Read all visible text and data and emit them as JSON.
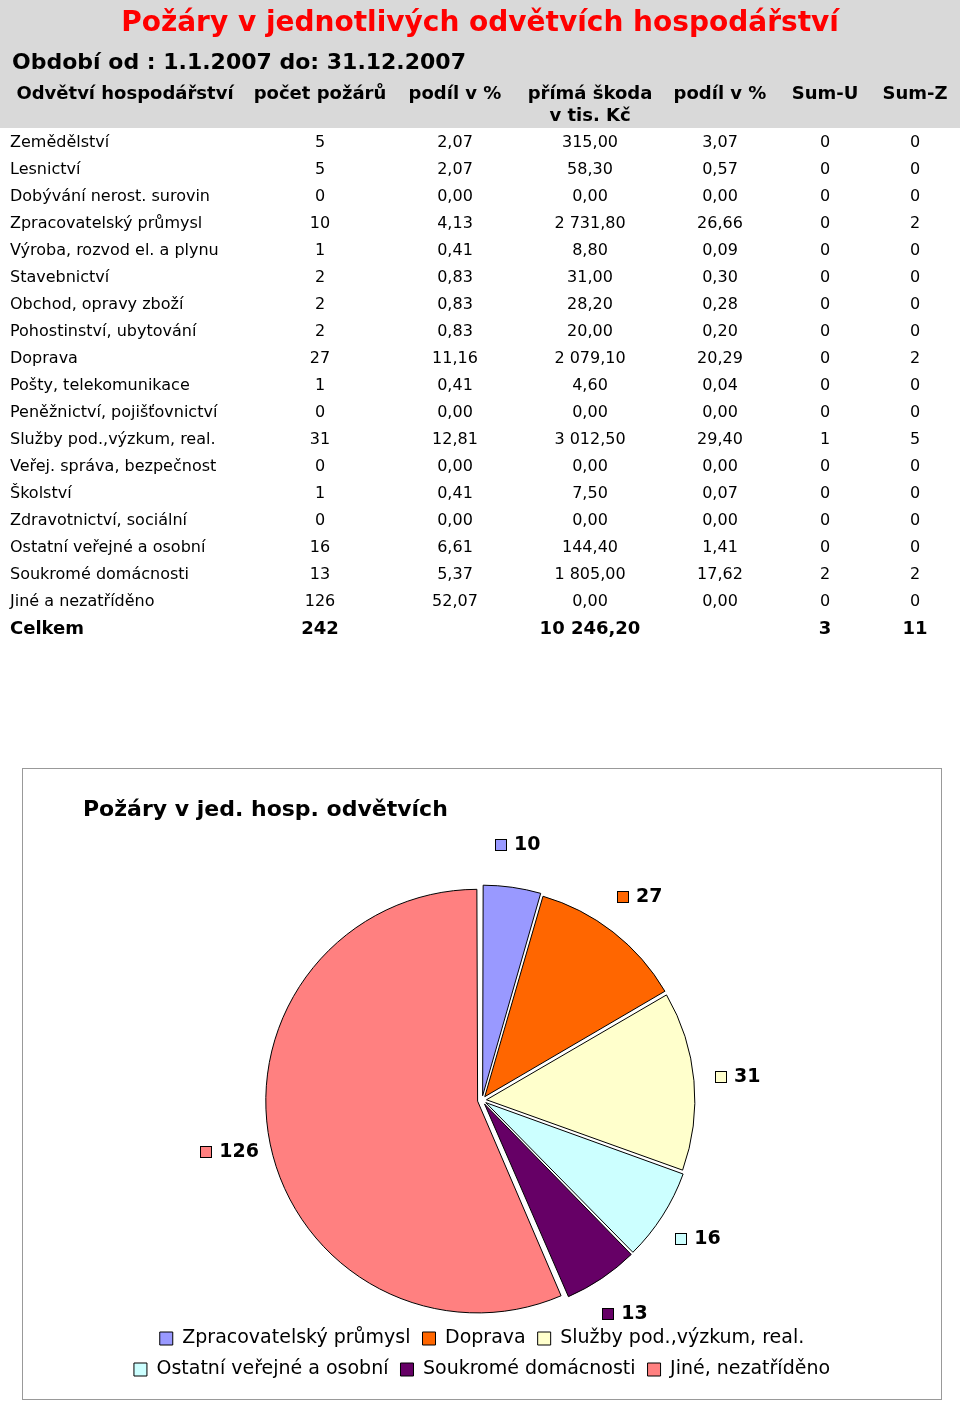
{
  "chart_data": [
    {
      "type": "other",
      "title": "Požáry v jednotlivých odvětvích hospodářství",
      "subtitle": "Období od : 1.1.2007 do: 31.12.2007",
      "categories": [
        "Odvětví  hospodářství",
        "počet požárů",
        "podíl v %",
        "přímá škoda v tis. Kč",
        "podíl v %",
        "Sum-U",
        "Sum-Z"
      ],
      "y_categories": [
        "Zemědělství",
        "Lesnictví",
        "Dobývání nerost. surovin",
        "Zpracovatelský průmysl",
        "Výroba, rozvod el. a plynu",
        "Stavebnictví",
        "Obchod, opravy zboží",
        "Pohostinství, ubytování",
        "Doprava",
        "Pošty, telekomunikace",
        "Peněžnictví, pojišťovnictví",
        "Služby pod.,výzkum, real.",
        "Veřej. správa, bezpečnost",
        "Školství",
        "Zdravotnictví, sociální",
        "Ostatní veřejné a osobní",
        "Soukromé domácnosti",
        "Jiné a nezatříděno",
        "Celkem"
      ],
      "cell_labels": [
        [
          "5",
          "2,07",
          "315,00",
          "3,07",
          "0",
          "0"
        ],
        [
          "5",
          "2,07",
          "58,30",
          "0,57",
          "0",
          "0"
        ],
        [
          "0",
          "0,00",
          "0,00",
          "0,00",
          "0",
          "0"
        ],
        [
          "10",
          "4,13",
          "2 731,80",
          "26,66",
          "0",
          "2"
        ],
        [
          "1",
          "0,41",
          "8,80",
          "0,09",
          "0",
          "0"
        ],
        [
          "2",
          "0,83",
          "31,00",
          "0,30",
          "0",
          "0"
        ],
        [
          "2",
          "0,83",
          "28,20",
          "0,28",
          "0",
          "0"
        ],
        [
          "2",
          "0,83",
          "20,00",
          "0,20",
          "0",
          "0"
        ],
        [
          "27",
          "11,16",
          "2 079,10",
          "20,29",
          "0",
          "2"
        ],
        [
          "1",
          "0,41",
          "4,60",
          "0,04",
          "0",
          "0"
        ],
        [
          "0",
          "0,00",
          "0,00",
          "0,00",
          "0",
          "0"
        ],
        [
          "31",
          "12,81",
          "3 012,50",
          "29,40",
          "1",
          "5"
        ],
        [
          "0",
          "0,00",
          "0,00",
          "0,00",
          "0",
          "0"
        ],
        [
          "1",
          "0,41",
          "7,50",
          "0,07",
          "0",
          "0"
        ],
        [
          "0",
          "0,00",
          "0,00",
          "0,00",
          "0",
          "0"
        ],
        [
          "16",
          "6,61",
          "144,40",
          "1,41",
          "0",
          "0"
        ],
        [
          "13",
          "5,37",
          "1 805,00",
          "17,62",
          "2",
          "2"
        ],
        [
          "126",
          "52,07",
          "0,00",
          "0,00",
          "0",
          "0"
        ],
        [
          "242",
          null,
          "10 246,20",
          null,
          "3",
          "11"
        ]
      ]
    },
    {
      "type": "pie",
      "title": "Požáry v jed. hosp. odvětvích",
      "categories": [
        "Zpracovatelský průmysl",
        "Doprava",
        "Služby pod.,výzkum, real.",
        "Ostatní veřejné a osobní",
        "Soukromé domácnosti",
        "Jiné, nezatříděno"
      ],
      "values": [
        10,
        27,
        31,
        16,
        13,
        126
      ],
      "colors": [
        "#9999ff",
        "#ff6600",
        "#ffffcc",
        "#ccffff",
        "#660066",
        "#ff8080"
      ],
      "data_labels": true,
      "legend": "bottom"
    }
  ]
}
